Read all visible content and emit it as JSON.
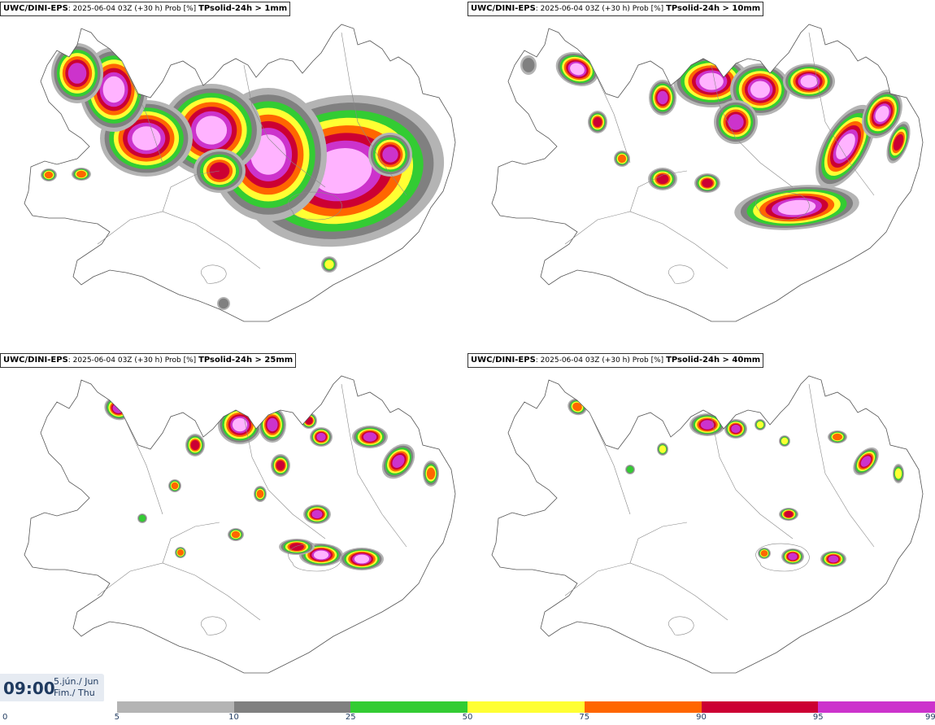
{
  "panels": [
    {
      "model": "UWC/DINI-EPS",
      "run": "2025-06-04 03Z (+30 h) Prob [%]",
      "param": "TPsolid-24h > 1mm",
      "level": 1
    },
    {
      "model": "UWC/DINI-EPS",
      "run": "2025-06-04 03Z (+30 h) Prob [%]",
      "param": "TPsolid-24h > 10mm",
      "level": 2
    },
    {
      "model": "UWC/DINI-EPS",
      "run": "2025-06-04 03Z (+30 h) Prob [%]",
      "param": "TPsolid-24h > 25mm",
      "level": 3
    },
    {
      "model": "UWC/DINI-EPS",
      "run": "2025-06-04 03Z (+30 h) Prob [%]",
      "param": "TPsolid-24h > 40mm",
      "level": 4
    }
  ],
  "time": {
    "clock": "09:00",
    "date_line": "5.jún./ Jun",
    "day_line": "Fim./ Thu"
  },
  "legend": {
    "ticks": [
      "0",
      "5",
      "10",
      "25",
      "50",
      "75",
      "90",
      "95",
      "99"
    ],
    "colors": [
      "#ffffff",
      "#b4b4b4",
      "#808080",
      "#33cc33",
      "#ffff33",
      "#ff6600",
      "#cc0033",
      "#cc33cc",
      "#ffb3ff"
    ]
  }
}
